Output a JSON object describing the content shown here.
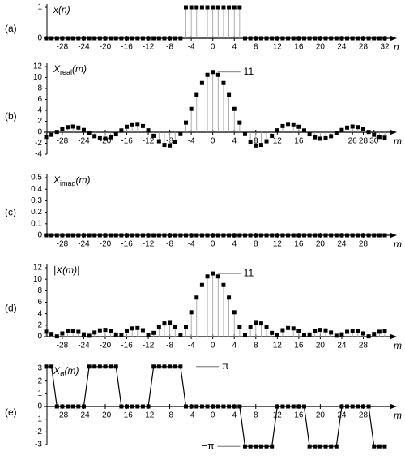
{
  "chart_data": [
    {
      "type": "stem",
      "panel_label": "(a)",
      "ylabel": "x",
      "ylabel_sub": "",
      "ylabel_tail": "(n)",
      "xlabel": "n",
      "stems": true,
      "color": "#000000",
      "x": [
        -31,
        -30,
        -29,
        -28,
        -27,
        -26,
        -25,
        -24,
        -23,
        -22,
        -21,
        -20,
        -19,
        -18,
        -17,
        -16,
        -15,
        -14,
        -13,
        -12,
        -11,
        -10,
        -9,
        -8,
        -7,
        -6,
        -5,
        -4,
        -3,
        -2,
        -1,
        0,
        1,
        2,
        3,
        4,
        5,
        6,
        7,
        8,
        9,
        10,
        11,
        12,
        13,
        14,
        15,
        16,
        17,
        18,
        19,
        20,
        21,
        22,
        23,
        24,
        25,
        26,
        27,
        28,
        29,
        30,
        31,
        32
      ],
      "values": [
        0,
        0,
        0,
        0,
        0,
        0,
        0,
        0,
        0,
        0,
        0,
        0,
        0,
        0,
        0,
        0,
        0,
        0,
        0,
        0,
        0,
        0,
        0,
        0,
        0,
        0,
        1,
        1,
        1,
        1,
        1,
        1,
        1,
        1,
        1,
        1,
        1,
        0,
        0,
        0,
        0,
        0,
        0,
        0,
        0,
        0,
        0,
        0,
        0,
        0,
        0,
        0,
        0,
        0,
        0,
        0,
        0,
        0,
        0,
        0,
        0,
        0,
        0,
        0
      ],
      "xlim": [
        -31,
        32
      ],
      "ylim": [
        0,
        1
      ],
      "yticks": [
        0,
        1
      ],
      "xticks": [
        -28,
        -24,
        -20,
        -16,
        -12,
        -8,
        -4,
        0,
        4,
        8,
        12,
        16,
        20,
        24,
        28,
        32
      ]
    },
    {
      "type": "stem",
      "panel_label": "(b)",
      "ylabel": "X",
      "ylabel_sub": "real",
      "ylabel_tail": "(m)",
      "xlabel": "m",
      "stems": true,
      "color": "#000000",
      "x": [
        -31,
        -30,
        -29,
        -28,
        -27,
        -26,
        -25,
        -24,
        -23,
        -22,
        -21,
        -20,
        -19,
        -18,
        -17,
        -16,
        -15,
        -14,
        -13,
        -12,
        -11,
        -10,
        -9,
        -8,
        -7,
        -6,
        -5,
        -4,
        -3,
        -2,
        -1,
        0,
        1,
        2,
        3,
        4,
        5,
        6,
        7,
        8,
        9,
        10,
        11,
        12,
        13,
        14,
        15,
        16,
        17,
        18,
        19,
        20,
        21,
        22,
        23,
        24,
        25,
        26,
        27,
        28,
        29,
        30,
        31,
        32
      ],
      "values": [
        -0.86,
        -0.47,
        0.05,
        0.57,
        0.93,
        1.04,
        0.85,
        0.41,
        -0.16,
        -0.72,
        -1.1,
        -1.18,
        -0.92,
        -0.38,
        0.33,
        1,
        1.44,
        1.51,
        1.13,
        0.35,
        -0.66,
        -1.64,
        -2.31,
        -2.41,
        -1.77,
        -0.34,
        1.76,
        4.26,
        6.81,
        9,
        10.48,
        11,
        10.48,
        9,
        6.81,
        4.26,
        1.76,
        -0.34,
        -1.77,
        -2.41,
        -2.31,
        -1.64,
        -0.66,
        0.35,
        1.13,
        1.51,
        1.44,
        1,
        0.33,
        -0.38,
        -0.92,
        -1.18,
        -1.1,
        -0.72,
        -0.16,
        0.41,
        0.85,
        1.04,
        0.93,
        0.57,
        0.05,
        -0.47,
        -0.86,
        -1
      ],
      "xlim": [
        -31,
        32
      ],
      "ylim": [
        -4,
        12
      ],
      "yticks": [
        -4,
        -2,
        0,
        2,
        4,
        6,
        8,
        10,
        12
      ],
      "xticks": [
        -28,
        -24,
        -20,
        -16,
        -12,
        -8,
        -4,
        0,
        4,
        8,
        12,
        16,
        26,
        28,
        30
      ],
      "annotations": [
        {
          "text": "11",
          "x": 0,
          "y": 11
        }
      ]
    },
    {
      "type": "stem",
      "panel_label": "(c)",
      "ylabel": "X",
      "ylabel_sub": "imag",
      "ylabel_tail": "(m)",
      "xlabel": "m",
      "stems": true,
      "color": "#000000",
      "x": [
        -31,
        -30,
        -29,
        -28,
        -27,
        -26,
        -25,
        -24,
        -23,
        -22,
        -21,
        -20,
        -19,
        -18,
        -17,
        -16,
        -15,
        -14,
        -13,
        -12,
        -11,
        -10,
        -9,
        -8,
        -7,
        -6,
        -5,
        -4,
        -3,
        -2,
        -1,
        0,
        1,
        2,
        3,
        4,
        5,
        6,
        7,
        8,
        9,
        10,
        11,
        12,
        13,
        14,
        15,
        16,
        17,
        18,
        19,
        20,
        21,
        22,
        23,
        24,
        25,
        26,
        27,
        28,
        29,
        30,
        31,
        32
      ],
      "values": [
        0,
        0,
        0,
        0,
        0,
        0,
        0,
        0,
        0,
        0,
        0,
        0,
        0,
        0,
        0,
        0,
        0,
        0,
        0,
        0,
        0,
        0,
        0,
        0,
        0,
        0,
        0,
        0,
        0,
        0,
        0,
        0,
        0,
        0,
        0,
        0,
        0,
        0,
        0,
        0,
        0,
        0,
        0,
        0,
        0,
        0,
        0,
        0,
        0,
        0,
        0,
        0,
        0,
        0,
        0,
        0,
        0,
        0,
        0,
        0,
        0,
        0,
        0,
        0
      ],
      "xlim": [
        -31,
        32
      ],
      "ylim": [
        0,
        0.5
      ],
      "yticks": [
        0,
        0.1,
        0.2,
        0.3,
        0.4,
        0.5
      ],
      "xticks": [
        -28,
        -24,
        -20,
        -16,
        -12,
        -8,
        -4,
        0,
        4,
        8,
        12,
        16,
        20,
        24,
        28
      ]
    },
    {
      "type": "stem",
      "panel_label": "(d)",
      "ylabel": "|X",
      "ylabel_sub": "",
      "ylabel_tail": "(m)|",
      "xlabel": "m",
      "stems": true,
      "color": "#000000",
      "x": [
        -31,
        -30,
        -29,
        -28,
        -27,
        -26,
        -25,
        -24,
        -23,
        -22,
        -21,
        -20,
        -19,
        -18,
        -17,
        -16,
        -15,
        -14,
        -13,
        -12,
        -11,
        -10,
        -9,
        -8,
        -7,
        -6,
        -5,
        -4,
        -3,
        -2,
        -1,
        0,
        1,
        2,
        3,
        4,
        5,
        6,
        7,
        8,
        9,
        10,
        11,
        12,
        13,
        14,
        15,
        16,
        17,
        18,
        19,
        20,
        21,
        22,
        23,
        24,
        25,
        26,
        27,
        28,
        29,
        30,
        31,
        32
      ],
      "values": [
        0.86,
        0.47,
        0.05,
        0.57,
        0.93,
        1.04,
        0.85,
        0.41,
        0.16,
        0.72,
        1.1,
        1.18,
        0.92,
        0.38,
        0.33,
        1,
        1.44,
        1.51,
        1.13,
        0.35,
        0.66,
        1.64,
        2.31,
        2.41,
        1.77,
        0.34,
        1.76,
        4.26,
        6.81,
        9,
        10.48,
        11,
        10.48,
        9,
        6.81,
        4.26,
        1.76,
        0.34,
        1.77,
        2.41,
        2.31,
        1.64,
        0.66,
        0.35,
        1.13,
        1.51,
        1.44,
        1,
        0.33,
        0.38,
        0.92,
        1.18,
        1.1,
        0.72,
        0.16,
        0.41,
        0.85,
        1.04,
        0.93,
        0.57,
        0.05,
        0.47,
        0.86,
        1
      ],
      "xlim": [
        -31,
        32
      ],
      "ylim": [
        0,
        12
      ],
      "yticks": [
        0,
        2,
        4,
        6,
        8,
        10,
        12
      ],
      "xticks": [
        -28,
        -24,
        -20,
        -16,
        -12,
        -8,
        -4,
        0,
        4,
        8,
        12,
        16,
        20,
        24,
        28
      ],
      "annotations": [
        {
          "text": "11",
          "x": 0,
          "y": 11
        }
      ]
    },
    {
      "type": "stem",
      "panel_label": "(e)",
      "ylabel": "X",
      "ylabel_sub": "ø",
      "ylabel_tail": "(m)",
      "xlabel": "m",
      "stems": false,
      "connect": true,
      "color": "#000000",
      "x": [
        -31,
        -30,
        -29,
        -28,
        -27,
        -26,
        -25,
        -24,
        -23,
        -22,
        -21,
        -20,
        -19,
        -18,
        -17,
        -16,
        -15,
        -14,
        -13,
        -12,
        -11,
        -10,
        -9,
        -8,
        -7,
        -6,
        -5,
        -4,
        -3,
        -2,
        -1,
        0,
        1,
        2,
        3,
        4,
        5,
        6,
        7,
        8,
        9,
        10,
        11,
        12,
        13,
        14,
        15,
        16,
        17,
        18,
        19,
        20,
        21,
        22,
        23,
        24,
        25,
        26,
        27,
        28,
        29,
        30,
        31,
        32
      ],
      "values": [
        3.14,
        3.14,
        0,
        0,
        0,
        0,
        0,
        0,
        3.14,
        3.14,
        3.14,
        3.14,
        3.14,
        3.14,
        0,
        0,
        0,
        0,
        0,
        0,
        3.14,
        3.14,
        3.14,
        3.14,
        3.14,
        3.14,
        0,
        0,
        0,
        0,
        0,
        0,
        0,
        0,
        0,
        0,
        0,
        -3.14,
        -3.14,
        -3.14,
        -3.14,
        -3.14,
        -3.14,
        0,
        0,
        0,
        0,
        0,
        0,
        -3.14,
        -3.14,
        -3.14,
        -3.14,
        -3.14,
        -3.14,
        0,
        0,
        0,
        0,
        0,
        0,
        -3.14,
        -3.14,
        -3.14
      ],
      "xlim": [
        -31,
        32
      ],
      "ylim": [
        -3,
        3
      ],
      "yticks": [
        -3,
        -2,
        -1,
        0,
        1,
        2,
        3
      ],
      "xticks": [
        -28,
        -24,
        -20,
        -16,
        -12,
        -8,
        -4,
        0,
        4,
        8,
        12,
        16,
        20,
        24,
        28
      ],
      "annotations": [
        {
          "text": "π",
          "x": -4,
          "y": 3.14
        },
        {
          "text": "−π",
          "x": 6,
          "y": -3.14
        }
      ]
    }
  ]
}
